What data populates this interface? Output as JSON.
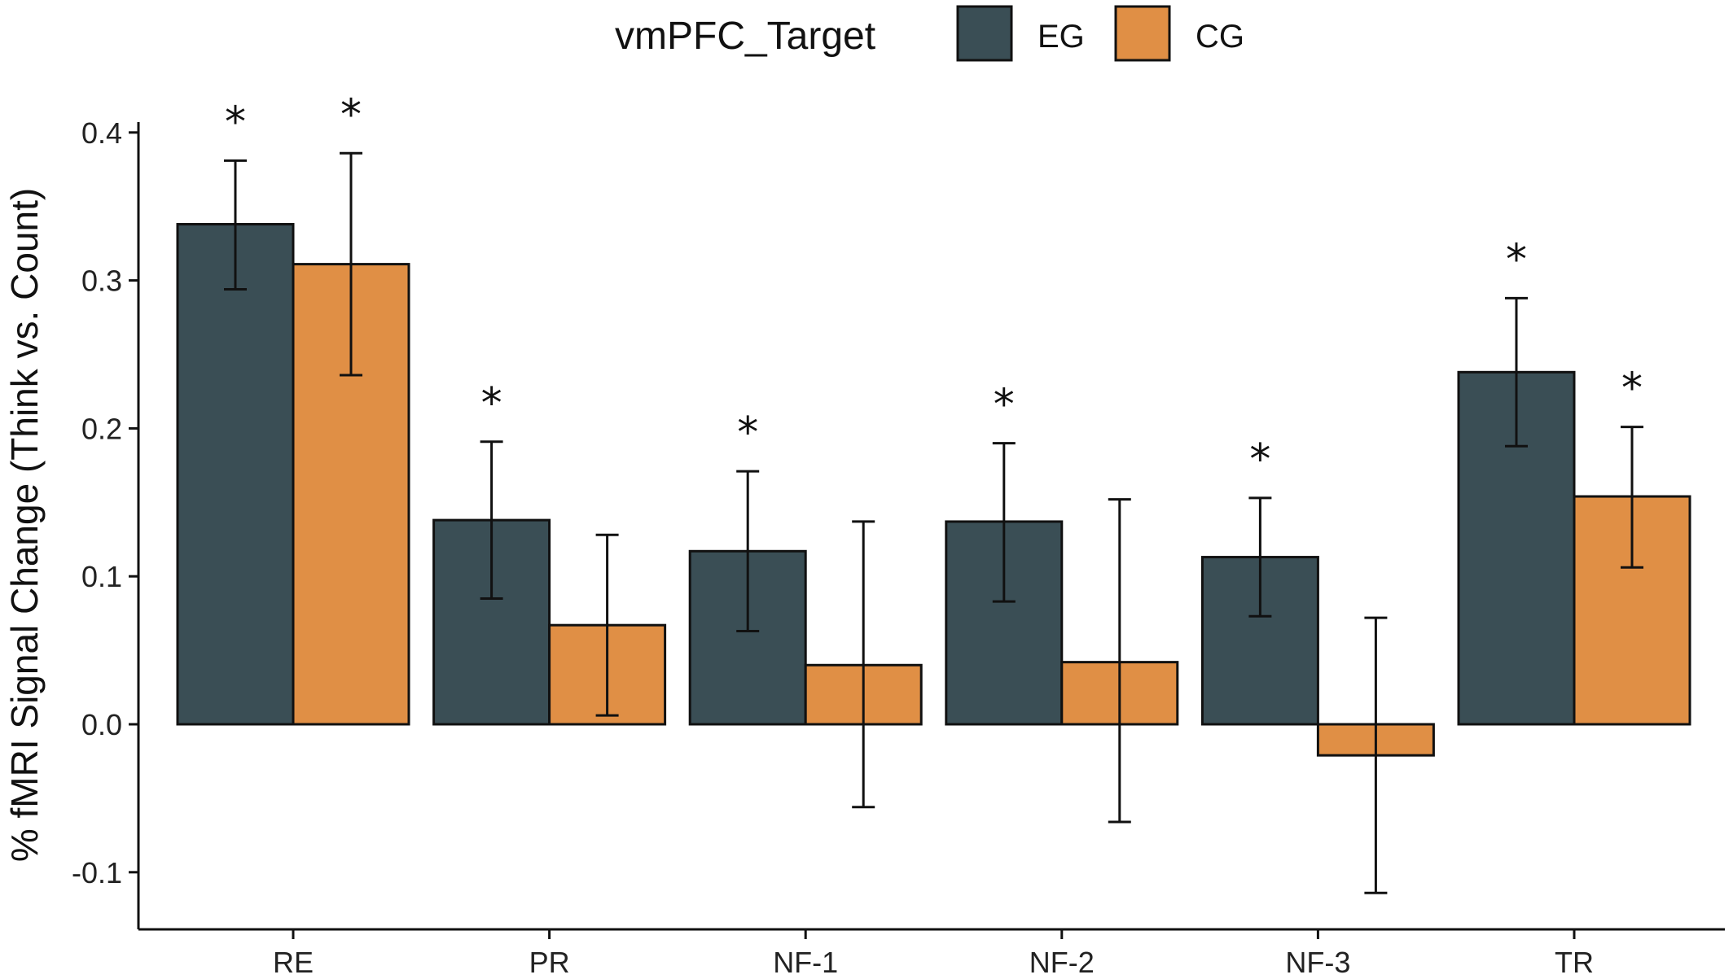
{
  "chart_data": {
    "type": "bar",
    "title": "",
    "xlabel": "",
    "ylabel": "% fMRI Signal Change (Think vs. Count)",
    "ylim": [
      -0.13,
      0.41
    ],
    "yticks": [
      -0.1,
      0.0,
      0.1,
      0.2,
      0.3,
      0.4
    ],
    "ytick_labels": [
      "-0.1",
      "0.0",
      "0.1",
      "0.2",
      "0.3",
      "0.4"
    ],
    "grid": false,
    "legend": {
      "title": "vmPFC_Target",
      "placement": "top"
    },
    "categories": [
      "RE",
      "PR",
      "NF-1",
      "NF-2",
      "NF-3",
      "TR"
    ],
    "series": [
      {
        "name": "EG",
        "color": "#3a4e55",
        "values": [
          0.338,
          0.138,
          0.117,
          0.137,
          0.113,
          0.238
        ],
        "error_low": [
          0.294,
          0.085,
          0.063,
          0.083,
          0.073,
          0.188
        ],
        "error_high": [
          0.381,
          0.191,
          0.171,
          0.19,
          0.153,
          0.288
        ],
        "significant": [
          true,
          true,
          true,
          true,
          true,
          true
        ]
      },
      {
        "name": "CG",
        "color": "#e08f45",
        "values": [
          0.311,
          0.067,
          0.04,
          0.042,
          -0.021,
          0.154
        ],
        "error_low": [
          0.236,
          0.006,
          -0.056,
          -0.066,
          -0.114,
          0.106
        ],
        "error_high": [
          0.386,
          0.128,
          0.137,
          0.152,
          0.072,
          0.201
        ],
        "significant": [
          true,
          false,
          false,
          false,
          false,
          true
        ]
      }
    ],
    "significance_marker": "*"
  }
}
